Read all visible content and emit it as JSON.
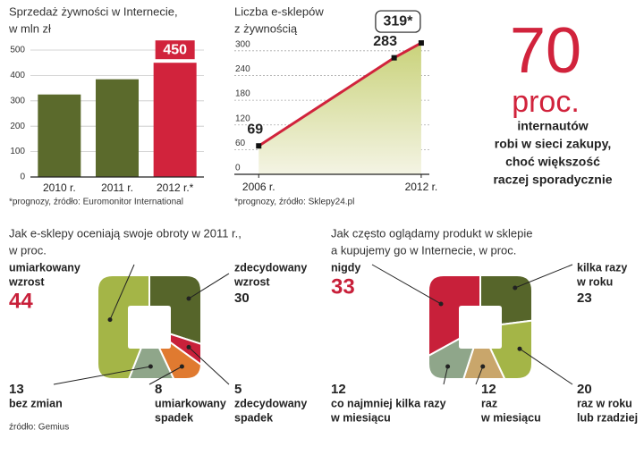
{
  "chart_data": [
    {
      "type": "bar",
      "title": [
        "Sprzedaż żywności w Internecie,",
        "w mln zł"
      ],
      "categories": [
        "2010 r.",
        "2011 r.",
        "2012 r.*"
      ],
      "values": [
        325,
        385,
        450
      ],
      "value_labels": [
        null,
        null,
        "450"
      ],
      "colors": [
        "#5b6a2c",
        "#5b6a2c",
        "#d1233c"
      ],
      "ylim": [
        0,
        500
      ],
      "yticks": [
        0,
        100,
        200,
        300,
        400,
        500
      ],
      "grid": true,
      "note": "*prognozy, źródło: Euromonitor International"
    },
    {
      "type": "line",
      "title": [
        "Liczba e-sklepów",
        "z żywnością"
      ],
      "x": [
        2006,
        2011,
        2012
      ],
      "values": [
        69,
        283,
        319
      ],
      "value_labels": [
        "69",
        "283",
        "319*"
      ],
      "color": "#d1233c",
      "fill": "#c9d27a",
      "xlim": [
        2005.1,
        2012.3
      ],
      "xticks": [
        {
          "value": 2006,
          "label": "2006 r."
        },
        {
          "value": 2012,
          "label": "2012 r."
        }
      ],
      "ylim": [
        0,
        330
      ],
      "yticks": [
        0,
        60,
        120,
        180,
        240,
        300
      ],
      "grid": true,
      "note": "*prognozy, źródło: Sklepy24.pl"
    },
    {
      "type": "pie",
      "title": [
        "Jak e-sklepy oceniają swoje obroty w 2011 r.,",
        "w proc."
      ],
      "categories": [
        [
          "zdecydowany",
          "wzrost"
        ],
        [
          "zdecydowany",
          "spadek"
        ],
        [
          "umiarkowany",
          "spadek"
        ],
        [
          "bez zmian"
        ],
        [
          "umiarkowany",
          "wzrost"
        ]
      ],
      "values": [
        30,
        5,
        8,
        13,
        44
      ],
      "colors": [
        "#56652a",
        "#c8203a",
        "#e07a30",
        "#8fa68a",
        "#a4b547"
      ],
      "note": "źródło: Gemius"
    },
    {
      "type": "pie",
      "title": [
        "Jak często oglądamy produkt w sklepie",
        "a kupujemy go w Internecie, w proc."
      ],
      "categories": [
        [
          "kilka razy",
          "w roku"
        ],
        [
          "raz w roku",
          "lub rzadziej"
        ],
        [
          "raz",
          "w miesiącu"
        ],
        [
          "co najmniej kilka razy",
          "w miesiącu"
        ],
        [
          "nigdy"
        ]
      ],
      "values": [
        23,
        20,
        12,
        12,
        33
      ],
      "colors": [
        "#56652a",
        "#a4b547",
        "#c9a66b",
        "#8fa68a",
        "#c8203a"
      ]
    }
  ],
  "highlight": {
    "number": "70",
    "unit": "proc.",
    "lines": [
      "internautów",
      "robi w sieci zakupy,",
      "choć większość",
      "raczej sporadycznie"
    ]
  }
}
